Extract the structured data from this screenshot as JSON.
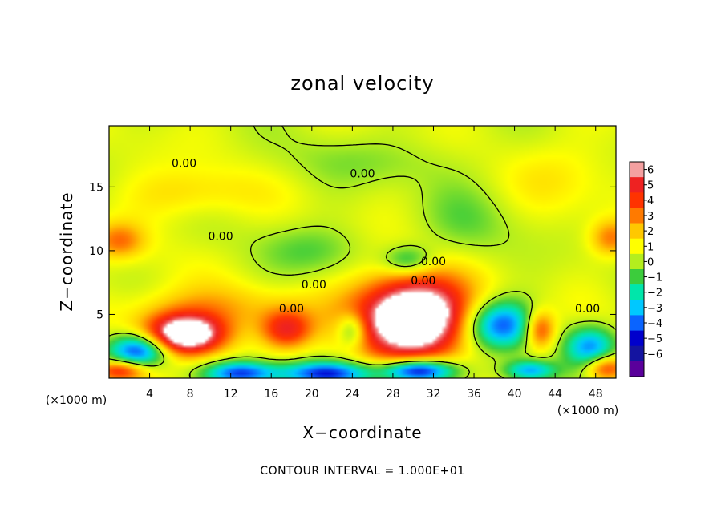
{
  "chart_data": {
    "type": "heatmap",
    "title": "zonal velocity",
    "xlabel": "X−coordinate",
    "ylabel": "Z−coordinate",
    "x_unit": "(×1000 m)",
    "y_unit": "(×1000 m)",
    "xlim": [
      0,
      50
    ],
    "ylim": [
      0,
      19.8
    ],
    "x_ticks": [
      4,
      8,
      12,
      16,
      20,
      24,
      28,
      32,
      36,
      40,
      44,
      48
    ],
    "y_ticks": [
      5,
      10,
      15
    ],
    "colorbar": {
      "range": [
        -6,
        6
      ],
      "ticks": [
        6,
        5,
        4,
        3,
        2,
        1,
        0,
        -1,
        -2,
        -3,
        -4,
        -5,
        -6
      ],
      "tick_labels": [
        "6",
        "5",
        "4",
        "3",
        "2",
        "1",
        "0",
        "−1",
        "−2",
        "−3",
        "−4",
        "−5",
        "−6"
      ],
      "colors": [
        "#f4a0a0",
        "#ee2222",
        "#ff3300",
        "#ff7a00",
        "#ffc800",
        "#ffff00",
        "#b4ee1e",
        "#3ccc3c",
        "#00e6aa",
        "#00c8ff",
        "#0a64ff",
        "#0000cc",
        "#1414a0",
        "#5a009b"
      ]
    },
    "field_blobs": [
      {
        "x": 30.0,
        "z": 4.8,
        "rx": 5.5,
        "rz": 3.2,
        "v": 9
      },
      {
        "x": 7.5,
        "z": 3.4,
        "rx": 4.0,
        "rz": 1.6,
        "v": 8
      },
      {
        "x": 3.0,
        "z": 2.2,
        "rx": 3.0,
        "rz": 1.3,
        "v": -6
      },
      {
        "x": 13.0,
        "z": 0.4,
        "rx": 3.5,
        "rz": 0.9,
        "v": -5
      },
      {
        "x": 21.5,
        "z": 0.4,
        "rx": 4.5,
        "rz": 0.9,
        "v": -5
      },
      {
        "x": 30.5,
        "z": 0.6,
        "rx": 3.5,
        "rz": 0.9,
        "v": -7
      },
      {
        "x": 38.5,
        "z": 4.2,
        "rx": 3.5,
        "rz": 1.9,
        "v": -5
      },
      {
        "x": 47.5,
        "z": 2.5,
        "rx": 2.5,
        "rz": 1.6,
        "v": -4
      },
      {
        "x": 24.0,
        "z": 3.8,
        "rx": 1.4,
        "rz": 1.3,
        "v": -3
      },
      {
        "x": 41.5,
        "z": 0.6,
        "rx": 2.5,
        "rz": 0.8,
        "v": -4
      },
      {
        "x": 17.5,
        "z": 3.8,
        "rx": 2.5,
        "rz": 1.5,
        "v": 4
      },
      {
        "x": 42.5,
        "z": 3.8,
        "rx": 1.5,
        "rz": 1.5,
        "v": 4
      },
      {
        "x": 1.0,
        "z": 0.6,
        "rx": 2.5,
        "rz": 0.8,
        "v": 4
      },
      {
        "x": 49.0,
        "z": 0.8,
        "rx": 2.0,
        "rz": 1.0,
        "v": 4
      },
      {
        "x": 1.0,
        "z": 10.8,
        "rx": 2.5,
        "rz": 1.4,
        "v": 2.5
      },
      {
        "x": 49.5,
        "z": 11.0,
        "rx": 2.0,
        "rz": 1.4,
        "v": 2.5
      },
      {
        "x": 10.0,
        "z": 5.5,
        "rx": 10.0,
        "rz": 1.8,
        "v": 1.6
      },
      {
        "x": 8.0,
        "z": 14.5,
        "rx": 6.0,
        "rz": 2.0,
        "v": 1.3
      },
      {
        "x": 20.0,
        "z": 10.0,
        "rx": 5.0,
        "rz": 2.0,
        "v": -1.2
      },
      {
        "x": 29.5,
        "z": 9.2,
        "rx": 2.5,
        "rz": 1.2,
        "v": -2.5
      },
      {
        "x": 35.0,
        "z": 12.0,
        "rx": 5.0,
        "rz": 3.0,
        "v": -0.9
      },
      {
        "x": 26.0,
        "z": 17.0,
        "rx": 10.0,
        "rz": 2.0,
        "v": -0.7
      },
      {
        "x": 45.0,
        "z": 16.0,
        "rx": 5.0,
        "rz": 3.0,
        "v": 0.8
      }
    ],
    "contour_label": "0.00",
    "contour_label_positions": [
      {
        "x": 7.4,
        "z": 16.8
      },
      {
        "x": 25.0,
        "z": 16.0
      },
      {
        "x": 11.0,
        "z": 11.1
      },
      {
        "x": 20.2,
        "z": 7.3
      },
      {
        "x": 18.0,
        "z": 5.4
      },
      {
        "x": 32.0,
        "z": 9.1
      },
      {
        "x": 31.0,
        "z": 7.6
      },
      {
        "x": 47.2,
        "z": 5.4
      }
    ],
    "annotation": "CONTOUR INTERVAL = 1.000E+01"
  }
}
